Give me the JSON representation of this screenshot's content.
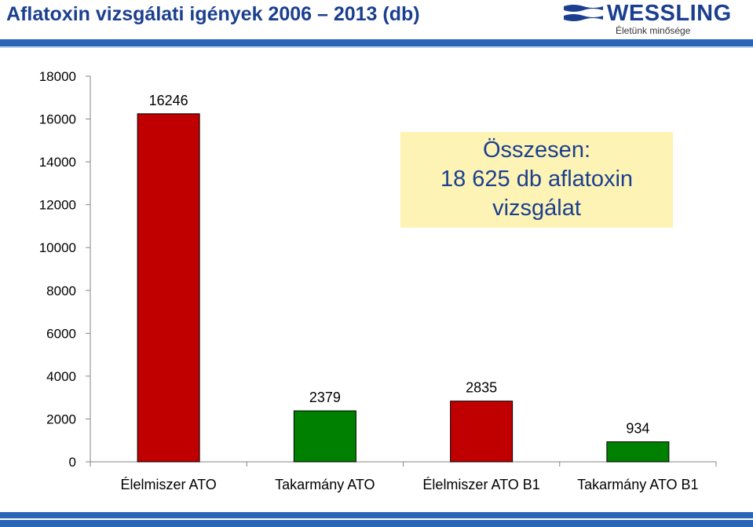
{
  "header": {
    "title": "Aflatoxin vizsgálati igények 2006 – 2013 (db)",
    "logo_name": "WESSLING",
    "logo_slogan": "Életünk minősége",
    "brand_color": "#1b3f8f",
    "rule_color": "#2a66b8"
  },
  "callout": {
    "line1": "Összesen:",
    "line2": "18 625 db aflatoxin",
    "line3": "vizsgálat",
    "background": "#fdf3b5"
  },
  "chart_data": {
    "type": "bar",
    "categories": [
      "Élelmiszer ATO",
      "Takarmány ATO",
      "Élelmiszer ATO B1",
      "Takarmány ATO B1"
    ],
    "values": [
      16246,
      2379,
      2835,
      934
    ],
    "bar_colors": [
      "#c00000",
      "#008000",
      "#c00000",
      "#008000"
    ],
    "data_labels": [
      "16246",
      "2379",
      "2835",
      "934"
    ],
    "y_ticks": [
      0,
      2000,
      4000,
      6000,
      8000,
      10000,
      12000,
      14000,
      16000,
      18000
    ],
    "ylim": [
      0,
      18000
    ],
    "grid": false,
    "legend": "none"
  }
}
